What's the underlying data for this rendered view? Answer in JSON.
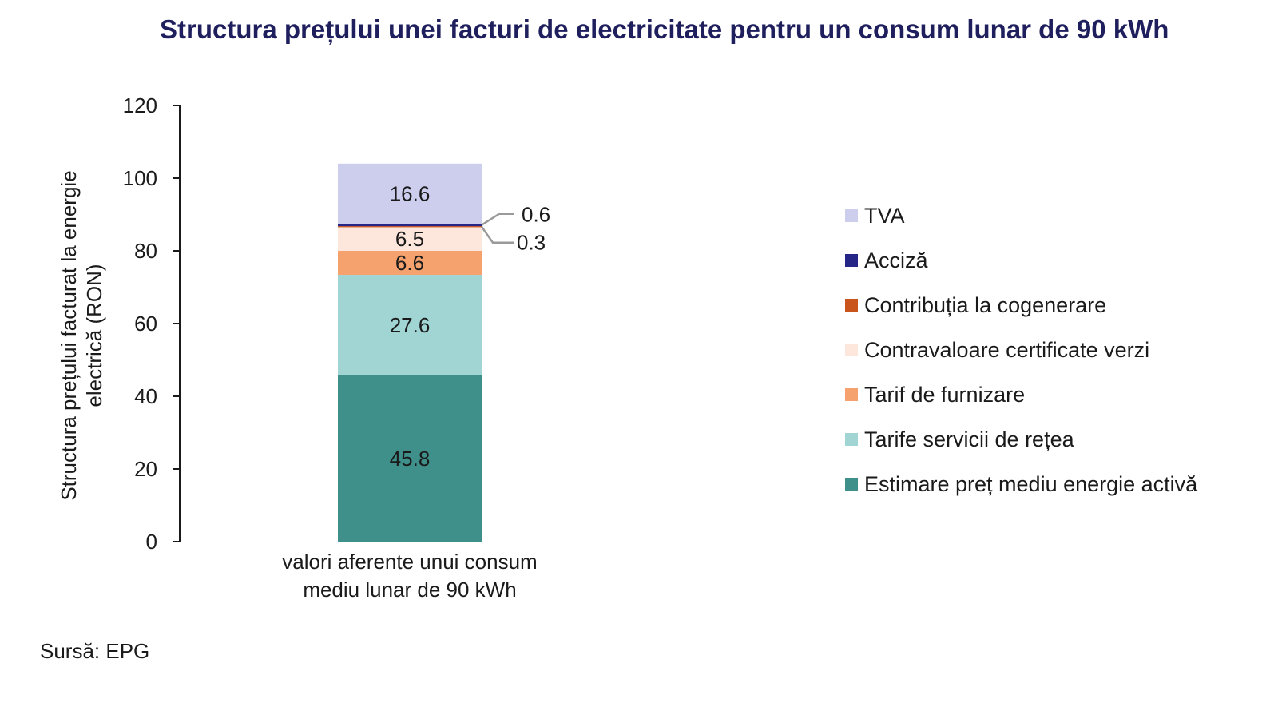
{
  "title": "Structura prețului unei facturi de electricitate pentru un consum lunar de 90 kWh",
  "source": "Sursă: EPG",
  "chart_data": {
    "type": "bar",
    "stacked": true,
    "categories": [
      "valori aferente unui consum mediu lunar de 90 kWh"
    ],
    "category_lines": [
      "valori aferente unui consum",
      "mediu lunar de 90 kWh"
    ],
    "ylabel_lines": [
      "Structura prețului facturat la energie",
      "electrică (RON)"
    ],
    "ylim": [
      0,
      120
    ],
    "yticks": [
      0,
      20,
      40,
      60,
      80,
      100,
      120
    ],
    "yticks_labels": [
      "0",
      "20",
      "40",
      "60",
      "80",
      "100",
      "120"
    ],
    "series": [
      {
        "name": "Estimare preț mediu energie activă",
        "values": [
          45.8
        ],
        "color": "#3f8f8a",
        "label": "45.8"
      },
      {
        "name": "Tarife servicii de rețea",
        "values": [
          27.6
        ],
        "color": "#a0d5d4",
        "label": "27.6"
      },
      {
        "name": "Tarif de furnizare",
        "values": [
          6.6
        ],
        "color": "#f5a26f",
        "label": "6.6"
      },
      {
        "name": "Contravaloare certificate verzi",
        "values": [
          6.5
        ],
        "color": "#fde7dc",
        "label": "6.5"
      },
      {
        "name": "Contribuția la cogenerare",
        "values": [
          0.3
        ],
        "color": "#c9541c",
        "label": "0.3"
      },
      {
        "name": "Acciză",
        "values": [
          0.6
        ],
        "color": "#262687",
        "label": "0.6"
      },
      {
        "name": "TVA",
        "values": [
          16.6
        ],
        "color": "#cdcdee",
        "label": "16.6"
      }
    ],
    "legend_order": [
      "TVA",
      "Acciză",
      "Contribuția la cogenerare",
      "Contravaloare certificate verzi",
      "Tarif de furnizare",
      "Tarife servicii de rețea",
      "Estimare preț mediu energie activă"
    ],
    "legend_position": "right"
  }
}
